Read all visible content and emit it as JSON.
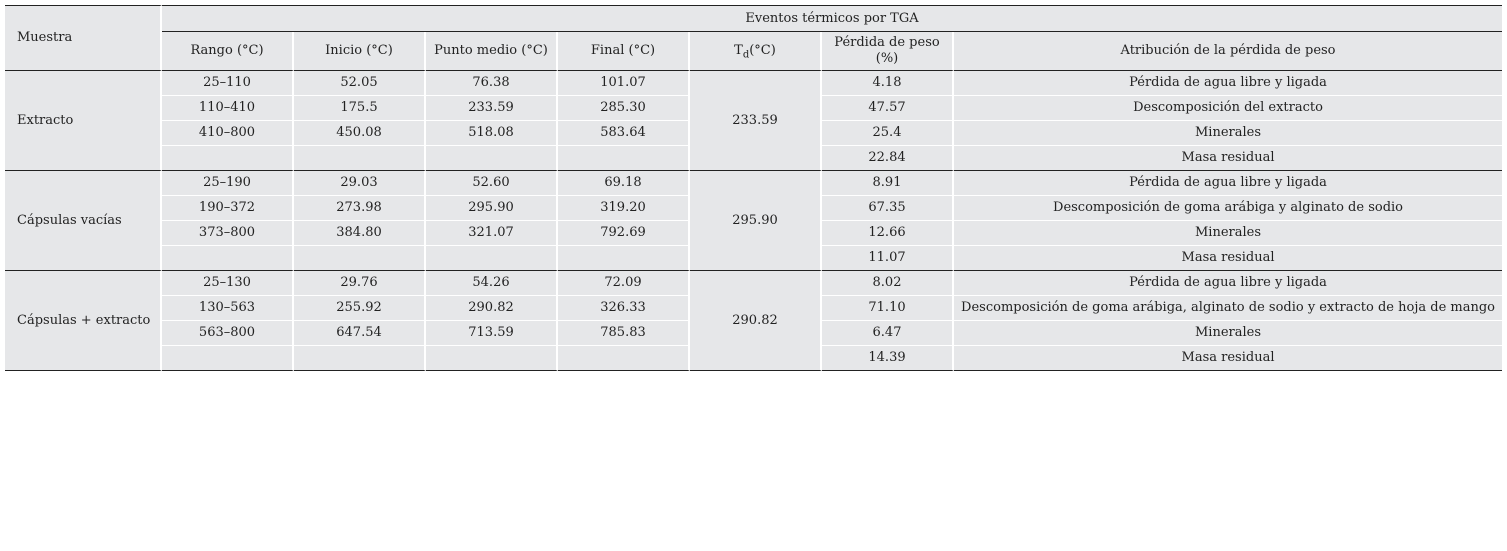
{
  "table": {
    "sample_header": "Muestra",
    "group_header": "Eventos térmicos por TGA",
    "columns": {
      "rango": "Rango (°C)",
      "inicio": "Inicio (°C)",
      "punto_medio": "Punto medio (°C)",
      "final": "Final (°C)",
      "td_main": "T",
      "td_sub": "d",
      "td_unit": "(°C)",
      "perdida_line1": "Pérdida de peso",
      "perdida_line2": "(%)",
      "atribucion": "Atribución de la pérdida de peso"
    },
    "groups": [
      {
        "sample": "Extracto",
        "td": "233.59",
        "rows": [
          {
            "rango": "25–110",
            "inicio": "52.05",
            "medio": "76.38",
            "final": "101.07",
            "perdida": "4.18",
            "atribucion": "Pérdida de agua libre y ligada"
          },
          {
            "rango": "110–410",
            "inicio": "175.5",
            "medio": "233.59",
            "final": "285.30",
            "perdida": "47.57",
            "atribucion": "Descomposición del extracto"
          },
          {
            "rango": "410–800",
            "inicio": "450.08",
            "medio": "518.08",
            "final": "583.64",
            "perdida": "25.4",
            "atribucion": "Minerales"
          },
          {
            "rango": "",
            "inicio": "",
            "medio": "",
            "final": "",
            "perdida": "22.84",
            "atribucion": "Masa residual"
          }
        ]
      },
      {
        "sample": "Cápsulas vacías",
        "td": "295.90",
        "rows": [
          {
            "rango": "25–190",
            "inicio": "29.03",
            "medio": "52.60",
            "final": "69.18",
            "perdida": "8.91",
            "atribucion": "Pérdida de agua libre y ligada"
          },
          {
            "rango": "190–372",
            "inicio": "273.98",
            "medio": "295.90",
            "final": "319.20",
            "perdida": "67.35",
            "atribucion": "Descomposición de goma arábiga y alginato de sodio"
          },
          {
            "rango": "373–800",
            "inicio": "384.80",
            "medio": "321.07",
            "final": "792.69",
            "perdida": "12.66",
            "atribucion": "Minerales"
          },
          {
            "rango": "",
            "inicio": "",
            "medio": "",
            "final": "",
            "perdida": "11.07",
            "atribucion": "Masa residual"
          }
        ]
      },
      {
        "sample": "Cápsulas + extracto",
        "td": "290.82",
        "rows": [
          {
            "rango": "25–130",
            "inicio": "29.76",
            "medio": "54.26",
            "final": "72.09",
            "perdida": "8.02",
            "atribucion": "Pérdida de agua libre y ligada"
          },
          {
            "rango": "130–563",
            "inicio": "255.92",
            "medio": "290.82",
            "final": "326.33",
            "perdida": "71.10",
            "atribucion": "Descomposición de goma arábiga, alginato de sodio y extracto de hoja de mango"
          },
          {
            "rango": "563–800",
            "inicio": "647.54",
            "medio": "713.59",
            "final": "785.83",
            "perdida": "6.47",
            "atribucion": "Minerales"
          },
          {
            "rango": "",
            "inicio": "",
            "medio": "",
            "final": "",
            "perdida": "14.39",
            "atribucion": "Masa residual"
          }
        ]
      }
    ]
  }
}
